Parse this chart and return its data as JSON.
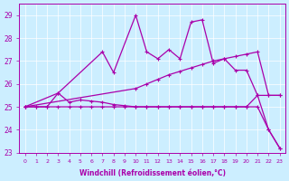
{
  "xlabel": "Windchill (Refroidissement éolien,°C)",
  "background_color": "#cceeff",
  "line_color": "#aa00aa",
  "xlim": [
    -0.5,
    23.5
  ],
  "ylim": [
    23,
    29.5
  ],
  "yticks": [
    23,
    24,
    25,
    26,
    27,
    28,
    29
  ],
  "xticks": [
    0,
    1,
    2,
    3,
    4,
    5,
    6,
    7,
    8,
    9,
    10,
    11,
    12,
    13,
    14,
    15,
    16,
    17,
    18,
    19,
    20,
    21,
    22,
    23
  ],
  "series": {
    "spiky": {
      "x": [
        0,
        3,
        7,
        8,
        10,
        11,
        12,
        13,
        14,
        15,
        16,
        17,
        18,
        19,
        20,
        21,
        22,
        23
      ],
      "y": [
        25,
        25.6,
        27.4,
        26.5,
        29.0,
        27.4,
        27.1,
        27.5,
        27.1,
        28.7,
        28.8,
        26.9,
        27.1,
        26.6,
        26.6,
        25.5,
        24.0,
        23.2
      ]
    },
    "rising": {
      "x": [
        0,
        10,
        11,
        12,
        13,
        14,
        15,
        16,
        17,
        18,
        19,
        20,
        21,
        22,
        23
      ],
      "y": [
        25,
        25.8,
        26.0,
        26.2,
        26.4,
        26.55,
        26.7,
        26.85,
        27.0,
        27.1,
        27.2,
        27.3,
        27.4,
        25.5,
        25.5
      ]
    },
    "flat_hump": {
      "x": [
        0,
        1,
        2,
        3,
        4,
        5,
        6,
        7,
        8,
        9,
        10,
        11,
        12,
        13,
        14,
        15,
        16,
        17,
        18,
        19,
        20,
        21,
        22,
        23
      ],
      "y": [
        25,
        25,
        25,
        25.6,
        25.2,
        25.3,
        25.25,
        25.2,
        25.1,
        25.05,
        25.0,
        25.0,
        25.0,
        25.0,
        25.0,
        25.0,
        25.0,
        25.0,
        25.0,
        25.0,
        25.0,
        25.5,
        25.5,
        25.5
      ]
    },
    "descending": {
      "x": [
        0,
        1,
        2,
        3,
        4,
        5,
        6,
        7,
        8,
        9,
        10,
        11,
        12,
        13,
        14,
        15,
        16,
        17,
        18,
        19,
        20,
        21,
        22,
        23
      ],
      "y": [
        25,
        25,
        25,
        25,
        25,
        25,
        25,
        25,
        25,
        25,
        25,
        25,
        25,
        25,
        25,
        25,
        25,
        25,
        25,
        25,
        25,
        25,
        24.0,
        23.2
      ]
    }
  }
}
